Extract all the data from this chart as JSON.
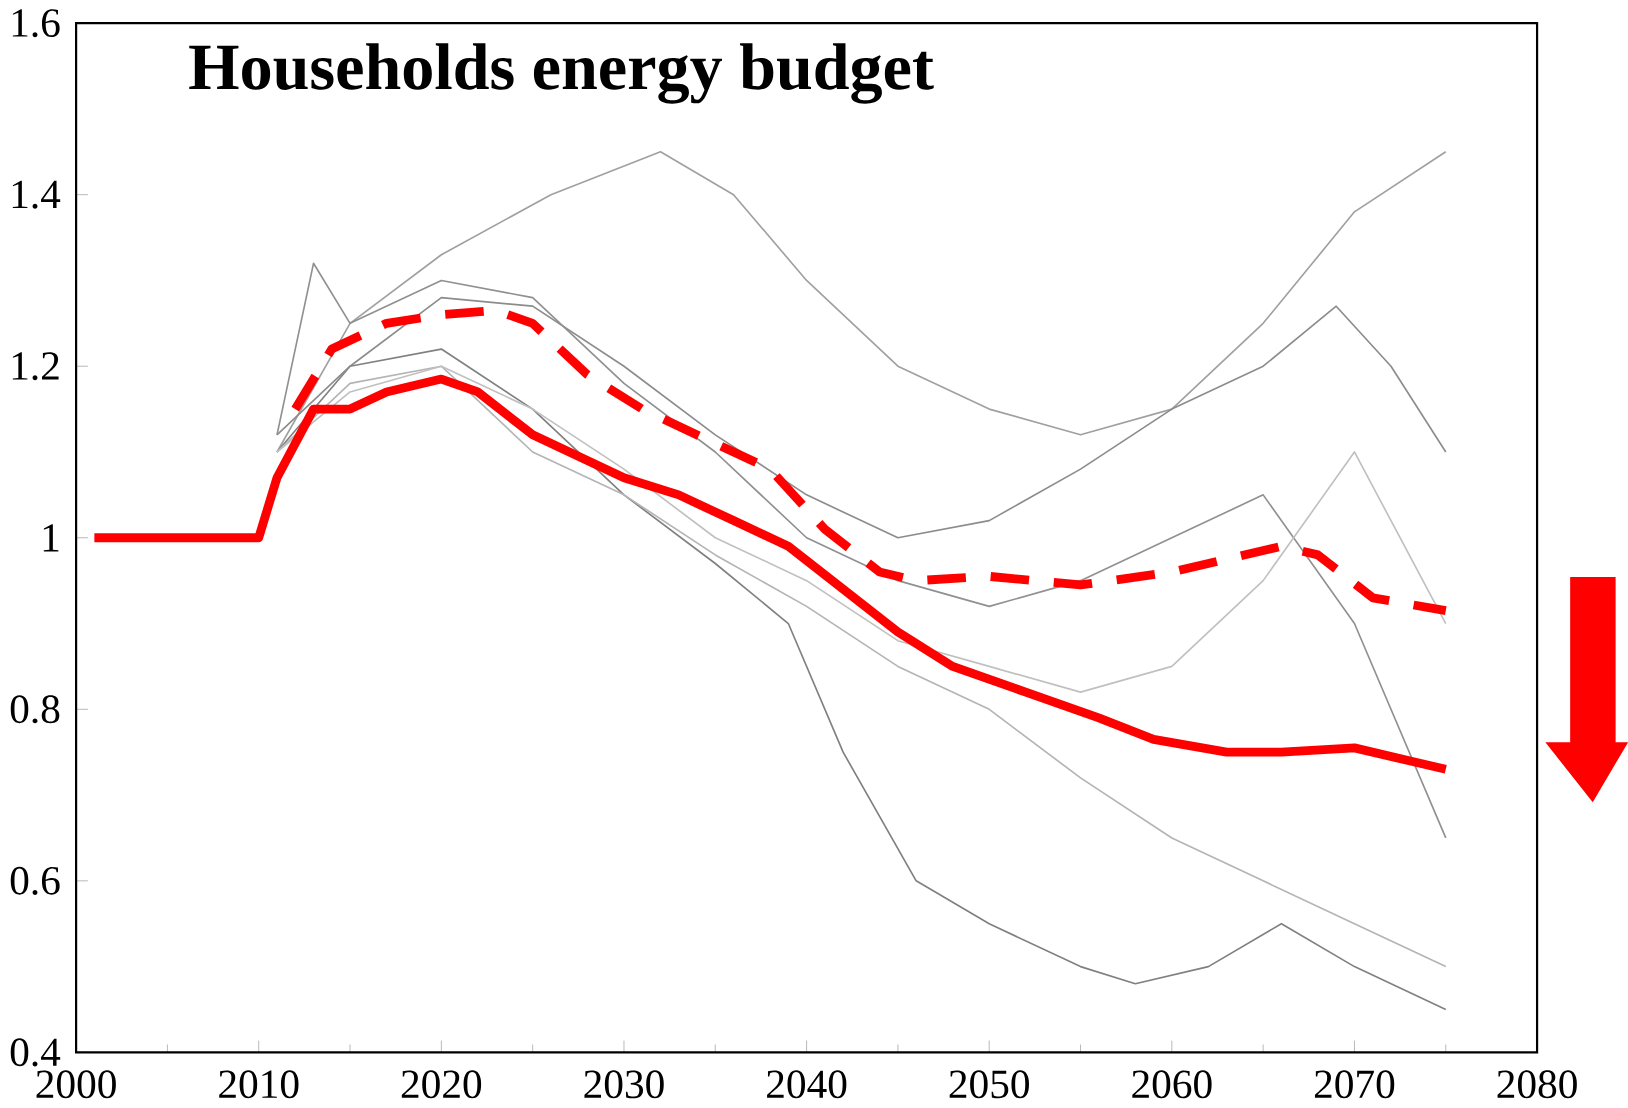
{
  "chart_data": {
    "type": "line",
    "title": "Households energy budget",
    "xlim": [
      2000,
      2080
    ],
    "ylim": [
      0.4,
      1.6
    ],
    "xticks": [
      2000,
      2010,
      2020,
      2030,
      2040,
      2050,
      2060,
      2070,
      2080
    ],
    "yticks": [
      0.4,
      0.6,
      0.8,
      1,
      1.2,
      1.4,
      1.6
    ],
    "series": [
      {
        "color": "#a0a0a0",
        "x": [
          2011,
          2015,
          2020,
          2026,
          2032,
          2036,
          2040,
          2045,
          2050,
          2055,
          2060,
          2065,
          2070,
          2075
        ],
        "values": [
          1.1,
          1.25,
          1.33,
          1.4,
          1.45,
          1.4,
          1.3,
          1.2,
          1.15,
          1.12,
          1.15,
          1.25,
          1.38,
          1.45
        ]
      },
      {
        "color": "#808080",
        "x": [
          2011,
          2015,
          2020,
          2025,
          2030,
          2035,
          2039,
          2042,
          2046,
          2050,
          2055,
          2058,
          2062,
          2066,
          2070,
          2075
        ],
        "values": [
          1.1,
          1.2,
          1.22,
          1.15,
          1.05,
          0.97,
          0.9,
          0.75,
          0.6,
          0.55,
          0.5,
          0.48,
          0.5,
          0.55,
          0.5,
          0.45
        ]
      },
      {
        "color": "#8c8c8c",
        "x": [
          2011,
          2015,
          2020,
          2025,
          2030,
          2035,
          2040,
          2045,
          2050,
          2055,
          2060,
          2065,
          2069,
          2072,
          2075
        ],
        "values": [
          1.12,
          1.2,
          1.28,
          1.27,
          1.2,
          1.12,
          1.05,
          1.0,
          1.02,
          1.08,
          1.15,
          1.2,
          1.27,
          1.2,
          1.1
        ]
      },
      {
        "color": "#b4b4b4",
        "x": [
          2011,
          2015,
          2020,
          2025,
          2030,
          2035,
          2040,
          2045,
          2050,
          2055,
          2060,
          2065,
          2070,
          2075
        ],
        "values": [
          1.1,
          1.18,
          1.2,
          1.1,
          1.05,
          0.98,
          0.92,
          0.85,
          0.8,
          0.72,
          0.65,
          0.6,
          0.55,
          0.5
        ]
      },
      {
        "color": "#909090",
        "x": [
          2011,
          2013,
          2015,
          2020,
          2025,
          2030,
          2035,
          2040,
          2045,
          2050,
          2055,
          2060,
          2065,
          2070,
          2075
        ],
        "values": [
          1.12,
          1.32,
          1.25,
          1.3,
          1.28,
          1.18,
          1.1,
          1.0,
          0.95,
          0.92,
          0.95,
          1.0,
          1.05,
          0.9,
          0.65
        ]
      },
      {
        "color": "#c0c0c0",
        "x": [
          2011,
          2015,
          2020,
          2025,
          2030,
          2035,
          2040,
          2045,
          2050,
          2055,
          2060,
          2065,
          2070,
          2075
        ],
        "values": [
          1.1,
          1.17,
          1.2,
          1.15,
          1.08,
          1.0,
          0.95,
          0.88,
          0.85,
          0.82,
          0.85,
          0.95,
          1.1,
          0.9
        ]
      },
      {
        "color": "#ff0000",
        "line_style": "dashed",
        "x": [
          2012,
          2014,
          2017,
          2020,
          2023,
          2025,
          2028,
          2031,
          2035,
          2038,
          2041,
          2044,
          2046,
          2050,
          2055,
          2060,
          2063,
          2066,
          2068,
          2071,
          2075
        ],
        "values": [
          1.15,
          1.22,
          1.25,
          1.26,
          1.265,
          1.25,
          1.19,
          1.15,
          1.11,
          1.08,
          1.01,
          0.96,
          0.95,
          0.955,
          0.945,
          0.96,
          0.975,
          0.99,
          0.98,
          0.93,
          0.915
        ]
      },
      {
        "color": "#ff0000",
        "line_style": "solid",
        "x": [
          2001,
          2010,
          2011,
          2013,
          2015,
          2017,
          2020,
          2022,
          2025,
          2030,
          2033,
          2036,
          2039,
          2042,
          2045,
          2048,
          2052,
          2056,
          2059,
          2063,
          2066,
          2070,
          2073,
          2075
        ],
        "values": [
          1.0,
          1.0,
          1.07,
          1.15,
          1.15,
          1.17,
          1.185,
          1.17,
          1.12,
          1.07,
          1.05,
          1.02,
          0.99,
          0.94,
          0.89,
          0.85,
          0.82,
          0.79,
          0.765,
          0.75,
          0.75,
          0.755,
          0.74,
          0.73
        ]
      }
    ]
  }
}
